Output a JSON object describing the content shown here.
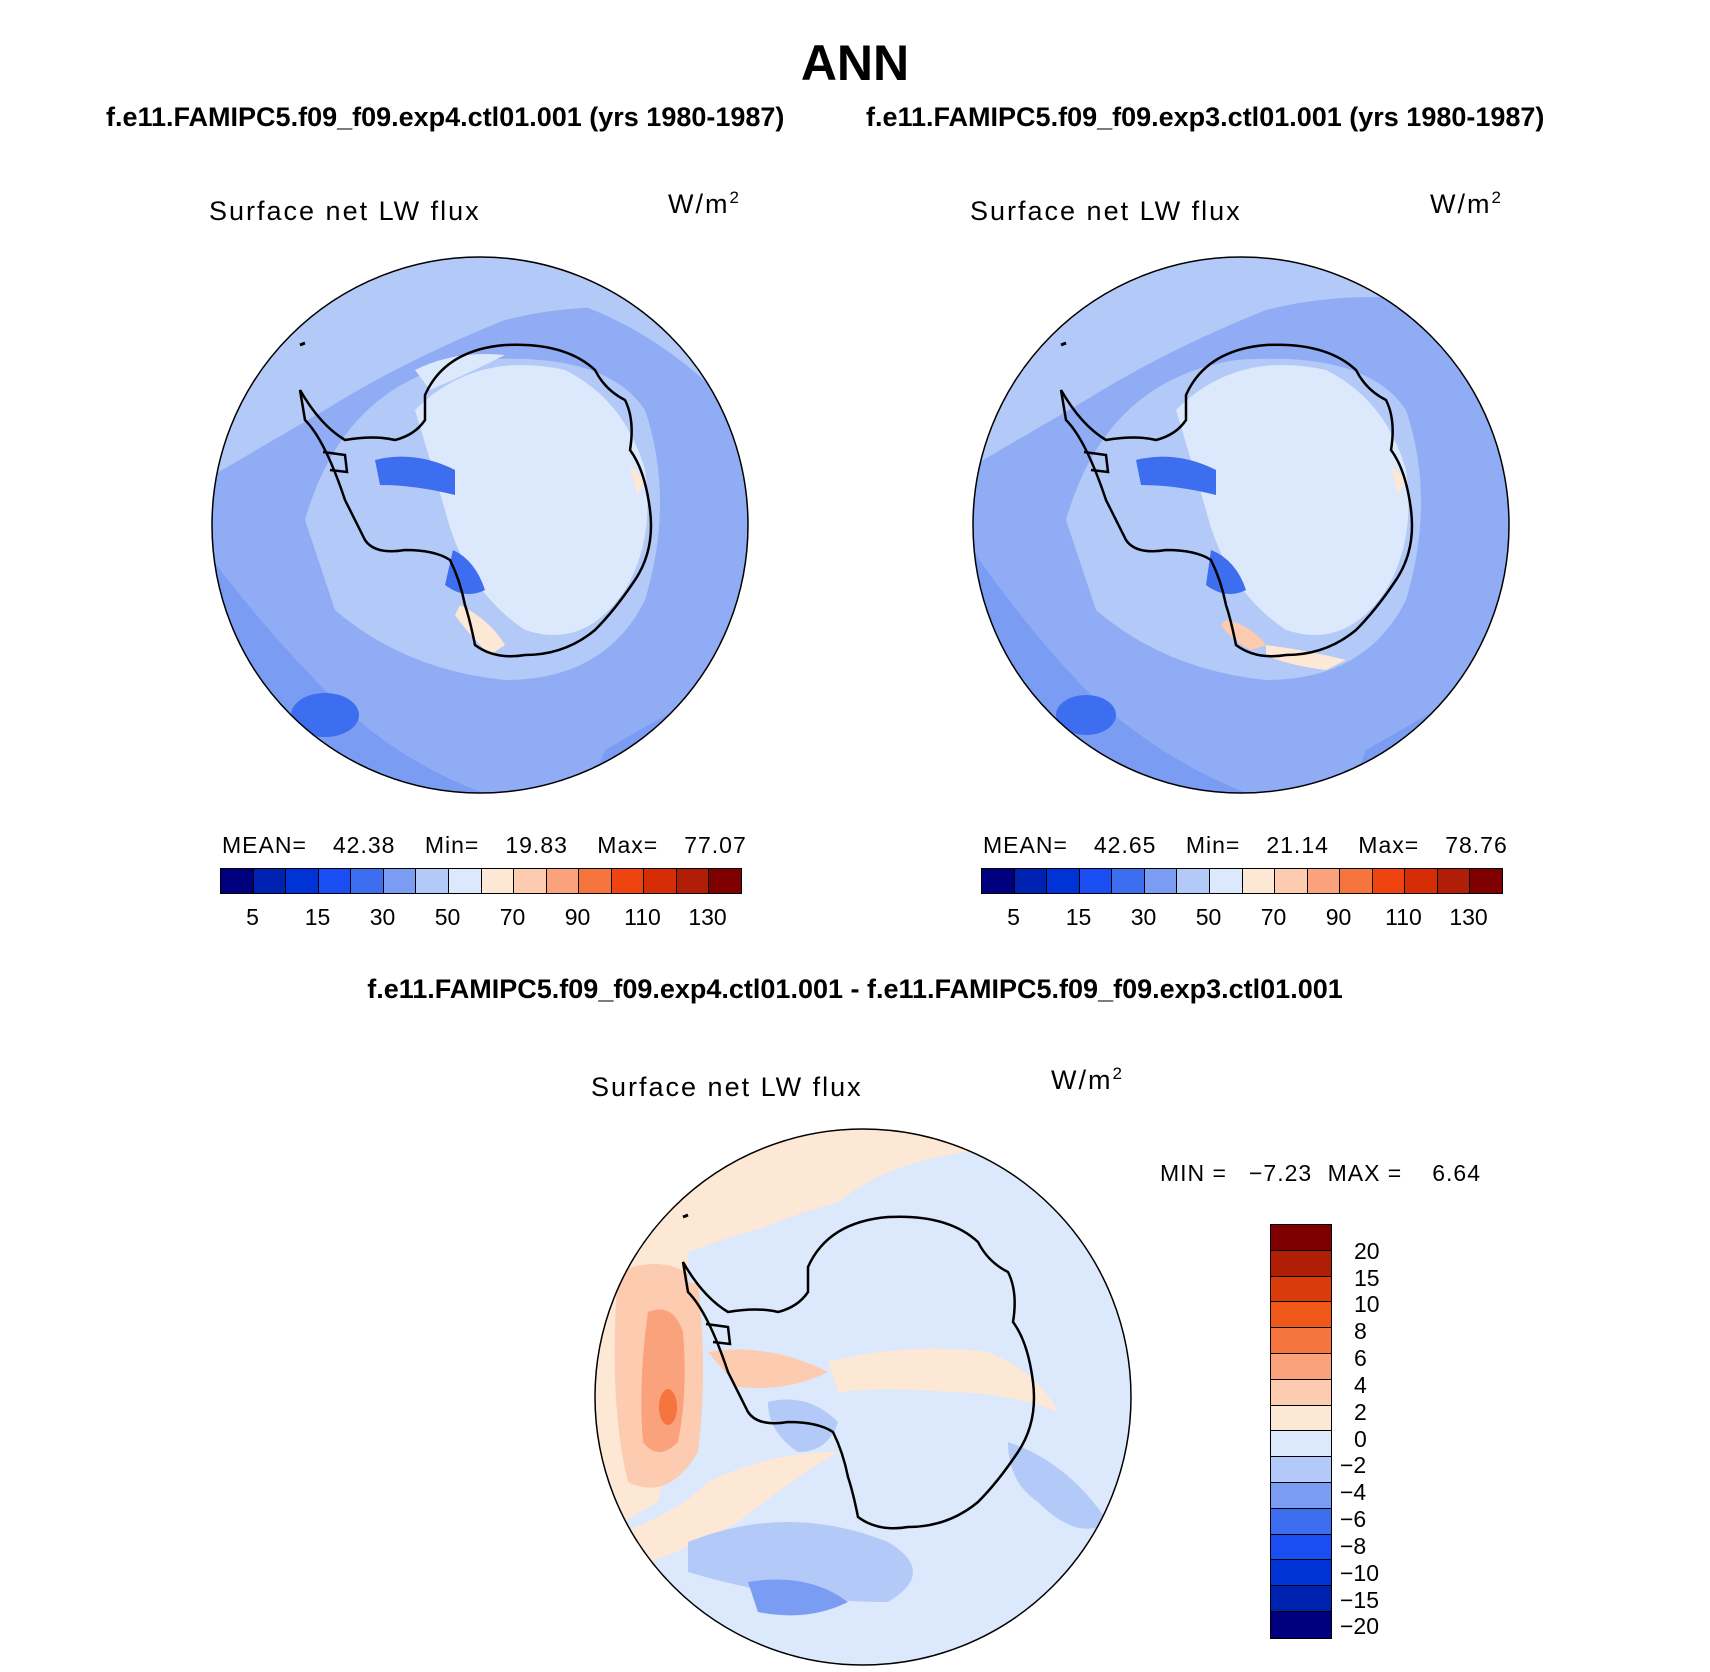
{
  "header": {
    "season": "ANN",
    "case1_label": "f.e11.FAMIPC5.f09_f09.exp4.ctl01.001 (yrs 1980-1987)",
    "case2_label": "f.e11.FAMIPC5.f09_f09.exp3.ctl01.001 (yrs 1980-1987)",
    "diff_label": "f.e11.FAMIPC5.f09_f09.exp4.ctl01.001 - f.e11.FAMIPC5.f09_f09.exp3.ctl01.001"
  },
  "panel1": {
    "title": "Surface net LW flux",
    "units": "W/m",
    "units_sup": "2",
    "mean_label": "MEAN=",
    "mean_value": "42.38",
    "min_label": "Min=",
    "min_value": "19.83",
    "max_label": "Max=",
    "max_value": "77.07"
  },
  "panel2": {
    "title": "Surface net LW flux",
    "units": "W/m",
    "units_sup": "2",
    "mean_label": "MEAN=",
    "mean_value": "42.65",
    "min_label": "Min=",
    "min_value": "21.14",
    "max_label": "Max=",
    "max_value": "78.76"
  },
  "panel3": {
    "title": "Surface net LW flux",
    "units": "W/m",
    "units_sup": "2",
    "min_label": "MIN =",
    "min_value": "−7.23",
    "max_label": "MAX =",
    "max_value": "6.64"
  },
  "colorbar_main": {
    "colors": [
      "#00007f",
      "#0022b0",
      "#0033d6",
      "#1a4ef2",
      "#3d6eef",
      "#7a9cf2",
      "#b3c9f7",
      "#dce8fb",
      "#fde8d6",
      "#fccbb0",
      "#f9a27c",
      "#f6743e",
      "#f04410",
      "#d62d06",
      "#b01e08",
      "#7f0000"
    ],
    "ticks": [
      "5",
      "15",
      "30",
      "50",
      "70",
      "90",
      "110",
      "130"
    ]
  },
  "colorbar_diff": {
    "colors": [
      "#7f0000",
      "#b01e08",
      "#d93b0a",
      "#f0581a",
      "#f6743e",
      "#f9a27c",
      "#fccbb0",
      "#fde8d6",
      "#dce8fb",
      "#b3c9f7",
      "#7a9cf2",
      "#3d6eef",
      "#1a4ef2",
      "#0033d6",
      "#0022b0",
      "#00007f"
    ],
    "ticks": [
      "20",
      "15",
      "10",
      "8",
      "6",
      "4",
      "2",
      "0",
      "−2",
      "−4",
      "−6",
      "−8",
      "−10",
      "−15",
      "−20"
    ]
  },
  "map_colors": {
    "ocean_dark": "#7a9cf2",
    "ocean_mid": "#90acf4",
    "ocean_light": "#b3c9f7",
    "ice_light": "#dce8fb",
    "deep_blue": "#3d6eef",
    "warm": "#fde8d6",
    "warm2": "#fccbb0",
    "warm3": "#f9a27c",
    "warm4": "#f6743e"
  }
}
